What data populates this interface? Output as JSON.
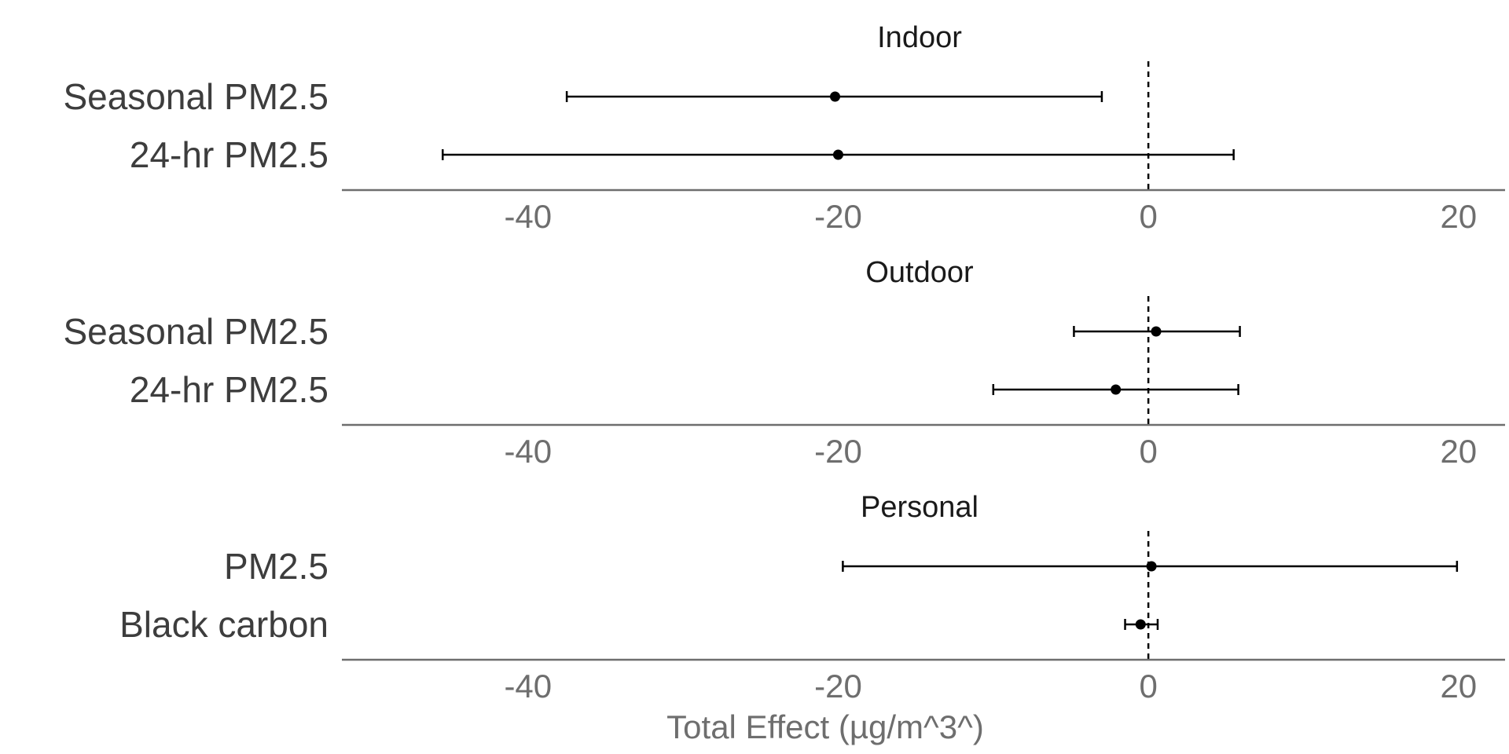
{
  "chart_data": {
    "type": "scatter",
    "subtype": "forest-plot",
    "x_title": "Total Effect (µg/m^3^)",
    "xlim": [
      -52,
      23
    ],
    "xticks": [
      -40,
      -20,
      0,
      20
    ],
    "reference_line": {
      "x": 0,
      "style": "dashed"
    },
    "grid": false,
    "panels": [
      {
        "title": "Indoor",
        "rows": [
          {
            "label": "Seasonal PM2.5",
            "estimate": -20.2,
            "lower": -37.5,
            "upper": -3.0
          },
          {
            "label": "24-hr PM2.5",
            "estimate": -20.0,
            "lower": -45.5,
            "upper": 5.5
          }
        ]
      },
      {
        "title": "Outdoor",
        "rows": [
          {
            "label": "Seasonal PM2.5",
            "estimate": 0.5,
            "lower": -4.8,
            "upper": 5.9
          },
          {
            "label": "24-hr PM2.5",
            "estimate": -2.1,
            "lower": -10.0,
            "upper": 5.8
          }
        ]
      },
      {
        "title": "Personal",
        "rows": [
          {
            "label": "PM2.5",
            "estimate": 0.2,
            "lower": -19.7,
            "upper": 19.9
          },
          {
            "label": "Black carbon",
            "estimate": -0.5,
            "lower": -1.5,
            "upper": 0.6
          }
        ]
      }
    ]
  }
}
